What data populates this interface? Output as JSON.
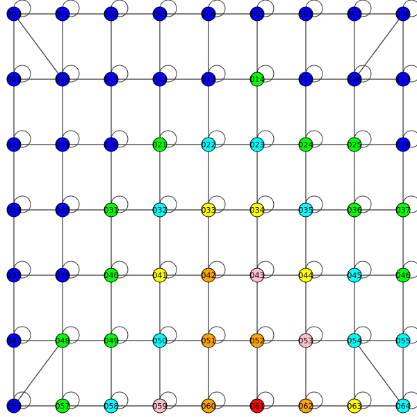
{
  "graph": {
    "grid_cols": 9,
    "grid_rows": 7,
    "colors": {
      "blue": "#0000ff",
      "green": "#00ff00",
      "cyan": "#00ffff",
      "yellow": "#ffff00",
      "orange": "#ffa500",
      "pink": "#ffc0cb",
      "red": "#ff0000"
    },
    "nodes": [
      {
        "id": "000",
        "color": "blue",
        "loop": true
      },
      {
        "id": "001",
        "color": "blue",
        "loop": true
      },
      {
        "id": "002",
        "color": "blue",
        "loop": true
      },
      {
        "id": "003",
        "color": "blue",
        "loop": true
      },
      {
        "id": "004",
        "color": "blue",
        "loop": true
      },
      {
        "id": "005",
        "color": "blue",
        "loop": true
      },
      {
        "id": "006",
        "color": "blue",
        "loop": true
      },
      {
        "id": "007",
        "color": "blue",
        "loop": true
      },
      {
        "id": "008",
        "color": "blue",
        "loop": true
      },
      {
        "id": "009",
        "color": "blue",
        "loop": true
      },
      {
        "id": "010",
        "color": "blue",
        "loop": true
      },
      {
        "id": "011",
        "color": "blue",
        "loop": true
      },
      {
        "id": "012",
        "color": "blue",
        "loop": true
      },
      {
        "id": "013",
        "color": "blue",
        "loop": true
      },
      {
        "id": "014",
        "color": "green",
        "loop": true
      },
      {
        "id": "015",
        "color": "blue",
        "loop": true
      },
      {
        "id": "016",
        "color": "blue",
        "loop": true
      },
      {
        "id": "017",
        "color": "blue",
        "loop": true
      },
      {
        "id": "018",
        "color": "blue",
        "loop": true
      },
      {
        "id": "019",
        "color": "blue",
        "loop": true
      },
      {
        "id": "020",
        "color": "blue",
        "loop": true
      },
      {
        "id": "021",
        "color": "green",
        "loop": true
      },
      {
        "id": "022",
        "color": "cyan",
        "loop": true
      },
      {
        "id": "023",
        "color": "cyan",
        "loop": true
      },
      {
        "id": "024",
        "color": "green",
        "loop": true
      },
      {
        "id": "025",
        "color": "green",
        "loop": true
      },
      {
        "id": "026",
        "color": "blue",
        "loop": true
      },
      {
        "id": "029",
        "color": "blue",
        "loop": true
      },
      {
        "id": "030",
        "color": "blue",
        "loop": true
      },
      {
        "id": "031",
        "color": "green",
        "loop": true
      },
      {
        "id": "032",
        "color": "cyan",
        "loop": true
      },
      {
        "id": "033",
        "color": "yellow",
        "loop": true
      },
      {
        "id": "034",
        "color": "yellow",
        "loop": true
      },
      {
        "id": "035",
        "color": "cyan",
        "loop": true
      },
      {
        "id": "036",
        "color": "green",
        "loop": true
      },
      {
        "id": "037",
        "color": "green",
        "loop": true
      },
      {
        "id": "038",
        "color": "blue",
        "loop": true
      },
      {
        "id": "039",
        "color": "blue",
        "loop": true
      },
      {
        "id": "040",
        "color": "green",
        "loop": true
      },
      {
        "id": "041",
        "color": "yellow",
        "loop": true
      },
      {
        "id": "042",
        "color": "orange",
        "loop": true
      },
      {
        "id": "043",
        "color": "pink",
        "loop": true
      },
      {
        "id": "044",
        "color": "yellow",
        "loop": true
      },
      {
        "id": "045",
        "color": "cyan",
        "loop": true
      },
      {
        "id": "046",
        "color": "green",
        "loop": true
      },
      {
        "id": "047",
        "color": "blue",
        "loop": true
      },
      {
        "id": "048",
        "color": "green",
        "loop": true
      },
      {
        "id": "049",
        "color": "green",
        "loop": true
      },
      {
        "id": "050",
        "color": "cyan",
        "loop": true
      },
      {
        "id": "051",
        "color": "orange",
        "loop": true
      },
      {
        "id": "052",
        "color": "orange",
        "loop": true
      },
      {
        "id": "053",
        "color": "pink",
        "loop": true
      },
      {
        "id": "054",
        "color": "cyan",
        "loop": true
      },
      {
        "id": "055",
        "color": "cyan",
        "loop": true
      },
      {
        "id": "056",
        "color": "blue",
        "loop": true
      },
      {
        "id": "057",
        "color": "green",
        "loop": true
      },
      {
        "id": "058",
        "color": "cyan",
        "loop": true
      },
      {
        "id": "059",
        "color": "pink",
        "loop": true
      },
      {
        "id": "060",
        "color": "orange",
        "loop": true
      },
      {
        "id": "061",
        "color": "red",
        "loop": true
      },
      {
        "id": "062",
        "color": "orange",
        "loop": true
      },
      {
        "id": "063",
        "color": "yellow",
        "loop": true
      },
      {
        "id": "064",
        "color": "cyan",
        "loop": true
      }
    ],
    "edges": [
      [
        "000",
        "001"
      ],
      [
        "001",
        "002"
      ],
      [
        "002",
        "003"
      ],
      [
        "003",
        "004"
      ],
      [
        "004",
        "005"
      ],
      [
        "005",
        "006"
      ],
      [
        "006",
        "007"
      ],
      [
        "007",
        "008"
      ],
      [
        "009",
        "010"
      ],
      [
        "010",
        "011"
      ],
      [
        "011",
        "012"
      ],
      [
        "012",
        "013"
      ],
      [
        "013",
        "014"
      ],
      [
        "014",
        "015"
      ],
      [
        "015",
        "016"
      ],
      [
        "016",
        "017"
      ],
      [
        "018",
        "019"
      ],
      [
        "019",
        "020"
      ],
      [
        "020",
        "021"
      ],
      [
        "021",
        "022"
      ],
      [
        "022",
        "023"
      ],
      [
        "023",
        "024"
      ],
      [
        "024",
        "025"
      ],
      [
        "025",
        "026"
      ],
      [
        "029",
        "030"
      ],
      [
        "030",
        "031"
      ],
      [
        "031",
        "032"
      ],
      [
        "032",
        "033"
      ],
      [
        "033",
        "034"
      ],
      [
        "034",
        "035"
      ],
      [
        "035",
        "036"
      ],
      [
        "036",
        "037"
      ],
      [
        "038",
        "039"
      ],
      [
        "039",
        "040"
      ],
      [
        "040",
        "041"
      ],
      [
        "041",
        "042"
      ],
      [
        "042",
        "043"
      ],
      [
        "043",
        "044"
      ],
      [
        "044",
        "045"
      ],
      [
        "045",
        "046"
      ],
      [
        "047",
        "048"
      ],
      [
        "048",
        "049"
      ],
      [
        "049",
        "050"
      ],
      [
        "050",
        "051"
      ],
      [
        "051",
        "052"
      ],
      [
        "052",
        "053"
      ],
      [
        "053",
        "054"
      ],
      [
        "054",
        "055"
      ],
      [
        "056",
        "057"
      ],
      [
        "057",
        "058"
      ],
      [
        "058",
        "059"
      ],
      [
        "059",
        "060"
      ],
      [
        "060",
        "061"
      ],
      [
        "061",
        "062"
      ],
      [
        "062",
        "063"
      ],
      [
        "063",
        "064"
      ],
      [
        "000",
        "009"
      ],
      [
        "009",
        "018"
      ],
      [
        "018",
        "029"
      ],
      [
        "029",
        "038"
      ],
      [
        "038",
        "047"
      ],
      [
        "047",
        "056"
      ],
      [
        "001",
        "010"
      ],
      [
        "010",
        "019"
      ],
      [
        "019",
        "030"
      ],
      [
        "030",
        "039"
      ],
      [
        "039",
        "048"
      ],
      [
        "048",
        "057"
      ],
      [
        "002",
        "011"
      ],
      [
        "011",
        "020"
      ],
      [
        "020",
        "031"
      ],
      [
        "031",
        "040"
      ],
      [
        "040",
        "049"
      ],
      [
        "049",
        "058"
      ],
      [
        "003",
        "012"
      ],
      [
        "012",
        "021"
      ],
      [
        "021",
        "032"
      ],
      [
        "032",
        "041"
      ],
      [
        "041",
        "050"
      ],
      [
        "050",
        "059"
      ],
      [
        "004",
        "013"
      ],
      [
        "013",
        "022"
      ],
      [
        "022",
        "033"
      ],
      [
        "033",
        "042"
      ],
      [
        "042",
        "051"
      ],
      [
        "051",
        "060"
      ],
      [
        "005",
        "014"
      ],
      [
        "014",
        "023"
      ],
      [
        "023",
        "034"
      ],
      [
        "034",
        "043"
      ],
      [
        "043",
        "052"
      ],
      [
        "052",
        "061"
      ],
      [
        "006",
        "015"
      ],
      [
        "015",
        "024"
      ],
      [
        "024",
        "035"
      ],
      [
        "035",
        "044"
      ],
      [
        "044",
        "053"
      ],
      [
        "053",
        "062"
      ],
      [
        "007",
        "016"
      ],
      [
        "016",
        "025"
      ],
      [
        "025",
        "036"
      ],
      [
        "036",
        "045"
      ],
      [
        "045",
        "054"
      ],
      [
        "054",
        "063"
      ],
      [
        "008",
        "017"
      ],
      [
        "017",
        "026"
      ],
      [
        "026",
        "037"
      ],
      [
        "037",
        "046"
      ],
      [
        "046",
        "055"
      ],
      [
        "055",
        "064"
      ],
      [
        "000",
        "010"
      ],
      [
        "008",
        "016"
      ],
      [
        "048",
        "056"
      ],
      [
        "054",
        "064"
      ]
    ]
  }
}
